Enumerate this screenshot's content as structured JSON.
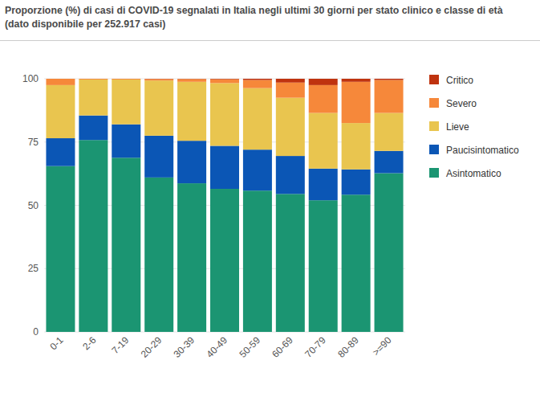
{
  "chart_data": {
    "type": "bar",
    "title": "Proporzione (%) di casi di COVID-19 segnalati in Italia negli ultimi 30 giorni per stato clinico e classe di età (dato disponibile per 252.917 casi)",
    "categories": [
      "0-1",
      "2-6",
      "7-19",
      "20-29",
      "30-39",
      "40-49",
      "50-59",
      "60-69",
      "70-79",
      "80-89",
      ">=90"
    ],
    "series": [
      {
        "name": "Asintomatico",
        "color": "#1b9572",
        "values": [
          65.5,
          75.8,
          68.8,
          61.0,
          58.7,
          56.5,
          55.8,
          54.5,
          52.0,
          54.2,
          62.7
        ]
      },
      {
        "name": "Paucisintomatico",
        "color": "#0b56b5",
        "values": [
          11.0,
          9.7,
          13.2,
          16.5,
          16.8,
          17.0,
          16.2,
          15.0,
          12.5,
          10.0,
          8.8
        ]
      },
      {
        "name": "Lieve",
        "color": "#e9c54f",
        "values": [
          21.0,
          14.2,
          17.7,
          21.8,
          23.3,
          24.8,
          24.3,
          23.0,
          22.0,
          18.3,
          15.0
        ]
      },
      {
        "name": "Severo",
        "color": "#f6883a",
        "values": [
          2.5,
          0.3,
          0.3,
          0.6,
          1.1,
          1.5,
          3.2,
          6.0,
          11.0,
          16.3,
          13.0
        ]
      },
      {
        "name": "Critico",
        "color": "#bf330f",
        "values": [
          0,
          0,
          0,
          0.1,
          0.1,
          0.2,
          0.5,
          1.5,
          2.5,
          1.2,
          0.5
        ]
      }
    ],
    "stacked": true,
    "ylim": [
      0,
      100
    ],
    "yticks": [
      0,
      25,
      50,
      75,
      100
    ],
    "grid": true,
    "legend": "right"
  }
}
